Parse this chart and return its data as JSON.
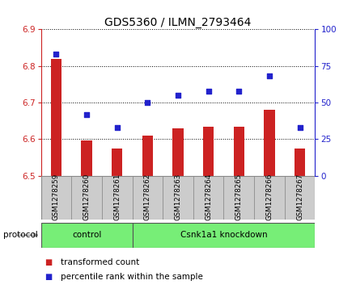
{
  "title": "GDS5360 / ILMN_2793464",
  "samples": [
    "GSM1278259",
    "GSM1278260",
    "GSM1278261",
    "GSM1278262",
    "GSM1278263",
    "GSM1278264",
    "GSM1278265",
    "GSM1278266",
    "GSM1278267"
  ],
  "bar_values": [
    6.82,
    6.597,
    6.575,
    6.61,
    6.63,
    6.635,
    6.635,
    6.68,
    6.575
  ],
  "dot_values": [
    83,
    42,
    33,
    50,
    55,
    58,
    58,
    68,
    33
  ],
  "ylim_left": [
    6.5,
    6.9
  ],
  "ylim_right": [
    0,
    100
  ],
  "yticks_left": [
    6.5,
    6.6,
    6.7,
    6.8,
    6.9
  ],
  "yticks_right": [
    0,
    25,
    50,
    75,
    100
  ],
  "bar_color": "#cc2222",
  "dot_color": "#2222cc",
  "protocol_bg": "#77ee77",
  "label_bg": "#cccccc",
  "legend_items": [
    {
      "label": "transformed count",
      "color": "#cc2222"
    },
    {
      "label": "percentile rank within the sample",
      "color": "#2222cc"
    }
  ],
  "title_fontsize": 10,
  "tick_fontsize": 7.5,
  "legend_fontsize": 7.5,
  "bar_width": 0.35
}
